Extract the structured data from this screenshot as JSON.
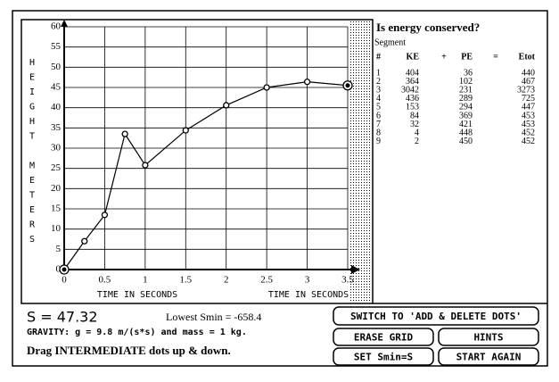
{
  "chart_data": {
    "type": "line",
    "ylabel": "HEIGHT METERS",
    "xlabel": "TIME IN SECONDS",
    "x": [
      0,
      0.25,
      0.5,
      0.75,
      1,
      1.5,
      2,
      2.5,
      3,
      3.5
    ],
    "values": [
      0,
      7,
      13.5,
      33.5,
      25.8,
      34.4,
      40.6,
      45,
      46.4,
      45.5
    ],
    "color": "#000000",
    "xlim": [
      0,
      3.5
    ],
    "xticks": [
      0,
      0.5,
      1,
      1.5,
      2,
      2.5,
      3,
      3.5
    ],
    "ylim": [
      0,
      60
    ],
    "yticks": [
      0,
      5,
      10,
      15,
      20,
      25,
      30,
      35,
      40,
      45,
      50,
      55,
      60
    ],
    "grid": true
  },
  "table": {
    "title": "Is energy conserved?",
    "subtitle": "Segment",
    "header": [
      "#",
      "KE",
      "+",
      "PE",
      "=",
      "Etot"
    ],
    "rows": [
      [
        "1",
        "404",
        "36",
        "440"
      ],
      [
        "2",
        "364",
        "102",
        "467"
      ],
      [
        "3",
        "3042",
        "231",
        "3273"
      ],
      [
        "4",
        "436",
        "289",
        "725"
      ],
      [
        "5",
        "153",
        "294",
        "447"
      ],
      [
        "6",
        "84",
        "369",
        "453"
      ],
      [
        "7",
        "32",
        "421",
        "453"
      ],
      [
        "8",
        "4",
        "448",
        "452"
      ],
      [
        "9",
        "2",
        "450",
        "452"
      ]
    ]
  },
  "status": {
    "s": "S = 47.32",
    "smin": "Lowest Smin = -658.4",
    "gravity": "GRAVITY: g = 9.8 m/(s*s) and mass = 1 kg.",
    "hint": "Drag INTERMEDIATE dots up & down."
  },
  "buttons": [
    "SWITCH TO 'ADD & DELETE DOTS'",
    "ERASE GRID",
    "HINTS",
    "SET Smin=S",
    "START AGAIN"
  ]
}
